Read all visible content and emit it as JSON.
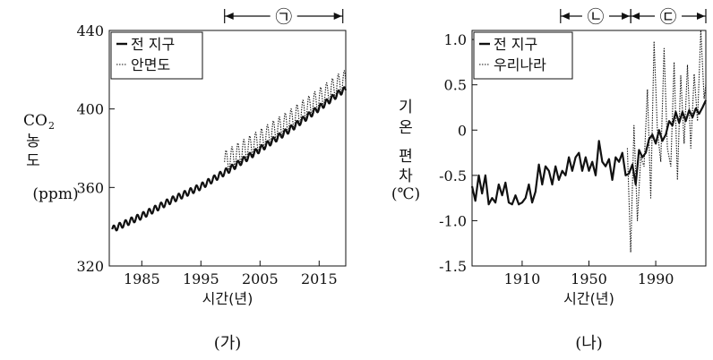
{
  "chart_data": [
    {
      "panel_label": "(가)",
      "type": "line",
      "xlabel": "시간(년)",
      "ylabel": [
        "CO",
        "2",
        "농",
        "도",
        "(ppm)"
      ],
      "xlim": [
        1979.5,
        2019.5
      ],
      "ylim": [
        320,
        440
      ],
      "x_ticks": [
        1985,
        1995,
        2005,
        2015
      ],
      "y_ticks": [
        320,
        360,
        400,
        440
      ],
      "period_marker": {
        "label": "㉠",
        "x_range": [
          1999,
          2019
        ]
      },
      "legend_position": "top-left",
      "series": [
        {
          "name": "전 지구",
          "style": "solid",
          "trend": [
            [
              1980,
              338.7
            ],
            [
              1985,
              345.5
            ],
            [
              1990,
              353.5
            ],
            [
              1995,
              360.5
            ],
            [
              2000,
              369.5
            ],
            [
              2005,
              379.5
            ],
            [
              2010,
              389.5
            ],
            [
              2015,
              400.5
            ],
            [
              2019,
              409.5
            ]
          ],
          "seasonal_amplitude": 1.6,
          "x_range": [
            1980,
            2019.5
          ]
        },
        {
          "name": "안면도",
          "style": "dotted",
          "trend": [
            [
              1999,
              373
            ],
            [
              2005,
              384
            ],
            [
              2010,
              394
            ],
            [
              2015,
              405
            ],
            [
              2019,
              414
            ]
          ],
          "seasonal_amplitude": 5.5,
          "x_range": [
            1999,
            2019.5
          ]
        }
      ]
    },
    {
      "panel_label": "(나)",
      "type": "line",
      "xlabel": "시간(년)",
      "ylabel": [
        "기",
        "온",
        "편",
        "차",
        "(℃)"
      ],
      "xlim": [
        1880,
        2020
      ],
      "ylim": [
        -1.5,
        1.1
      ],
      "x_ticks": [
        1910,
        1950,
        1990
      ],
      "y_ticks": [
        -1.5,
        -1.0,
        -0.5,
        0,
        0.5,
        1.0
      ],
      "y_tick_labels": [
        "-1.5",
        "-1.0",
        "-0.5",
        "0",
        "0.5",
        "1.0"
      ],
      "period_markers": [
        {
          "label": "㉡",
          "x_range": [
            1933,
            1975
          ]
        },
        {
          "label": "㉢",
          "x_range": [
            1975,
            2020
          ]
        }
      ],
      "legend_position": "top-left",
      "series": [
        {
          "name": "전 지구",
          "style": "solid",
          "x": [
            1880,
            1882,
            1884,
            1886,
            1888,
            1890,
            1892,
            1894,
            1896,
            1898,
            1900,
            1902,
            1904,
            1906,
            1908,
            1910,
            1912,
            1914,
            1916,
            1918,
            1920,
            1922,
            1924,
            1926,
            1928,
            1930,
            1932,
            1934,
            1936,
            1938,
            1940,
            1942,
            1944,
            1946,
            1948,
            1950,
            1952,
            1954,
            1956,
            1958,
            1960,
            1962,
            1964,
            1966,
            1968,
            1970,
            1972,
            1974,
            1976,
            1978,
            1980,
            1982,
            1984,
            1986,
            1988,
            1990,
            1992,
            1994,
            1996,
            1998,
            2000,
            2002,
            2004,
            2006,
            2008,
            2010,
            2012,
            2014,
            2016,
            2018,
            2020
          ],
          "values": [
            -0.62,
            -0.78,
            -0.5,
            -0.7,
            -0.5,
            -0.82,
            -0.75,
            -0.8,
            -0.6,
            -0.72,
            -0.58,
            -0.8,
            -0.82,
            -0.72,
            -0.82,
            -0.8,
            -0.75,
            -0.6,
            -0.8,
            -0.68,
            -0.38,
            -0.6,
            -0.4,
            -0.45,
            -0.6,
            -0.4,
            -0.55,
            -0.45,
            -0.5,
            -0.3,
            -0.45,
            -0.3,
            -0.25,
            -0.45,
            -0.3,
            -0.45,
            -0.35,
            -0.5,
            -0.12,
            -0.35,
            -0.4,
            -0.32,
            -0.55,
            -0.3,
            -0.35,
            -0.25,
            -0.5,
            -0.48,
            -0.38,
            -0.6,
            -0.22,
            -0.3,
            -0.25,
            -0.1,
            -0.05,
            -0.15,
            0,
            -0.12,
            -0.05,
            0.1,
            0.05,
            0.2,
            0.08,
            0.2,
            0.1,
            0.22,
            0.14,
            0.24,
            0.18,
            0.25,
            0.33
          ]
        },
        {
          "name": "우리나라",
          "style": "dotted",
          "x": [
            1973,
            1975,
            1977,
            1979,
            1981,
            1983,
            1985,
            1987,
            1989,
            1991,
            1993,
            1995,
            1997,
            1999,
            2001,
            2003,
            2005,
            2007,
            2009,
            2011,
            2013,
            2015,
            2017,
            2019,
            2020
          ],
          "values": [
            -0.2,
            -1.35,
            0.05,
            -1.0,
            -0.3,
            -0.4,
            0.45,
            -0.75,
            0.98,
            0.0,
            -0.35,
            0.9,
            -0.2,
            -0.4,
            0.75,
            -0.55,
            0.6,
            -0.15,
            0.72,
            -0.2,
            0.62,
            0.1,
            1.1,
            0.35,
            0.5
          ]
        }
      ]
    }
  ],
  "captions": [
    "(가)",
    "(나)"
  ]
}
